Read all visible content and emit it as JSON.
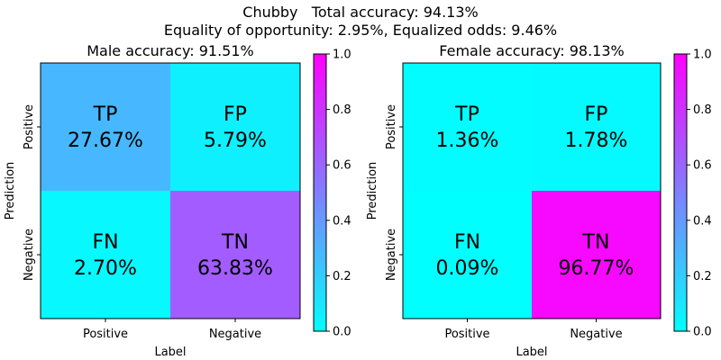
{
  "figure": {
    "title_line1": "Chubby   Total accuracy: 94.13%",
    "title_line2": "Equality of opportunity: 2.95%, Equalized odds: 9.46%"
  },
  "chart_data": [
    {
      "type": "heatmap",
      "title": "Male accuracy: 91.51%",
      "xlabel": "Label",
      "ylabel": "Prediction",
      "x_tick_labels": [
        "Positive",
        "Negative"
      ],
      "y_tick_labels": [
        "Positive",
        "Negative"
      ],
      "cells": [
        {
          "row": 0,
          "col": 0,
          "name": "TP",
          "label": "27.67%",
          "value": 0.2767
        },
        {
          "row": 0,
          "col": 1,
          "name": "FP",
          "label": "5.79%",
          "value": 0.0579
        },
        {
          "row": 1,
          "col": 0,
          "name": "FN",
          "label": "2.70%",
          "value": 0.027
        },
        {
          "row": 1,
          "col": 1,
          "name": "TN",
          "label": "63.83%",
          "value": 0.6383
        }
      ],
      "colorbar": {
        "colormap": "cool",
        "range": [
          0,
          1
        ],
        "ticks": [
          "0.0",
          "0.2",
          "0.4",
          "0.6",
          "0.8",
          "1.0"
        ]
      }
    },
    {
      "type": "heatmap",
      "title": "Female accuracy: 98.13%",
      "xlabel": "Label",
      "ylabel": "Prediction",
      "x_tick_labels": [
        "Positive",
        "Negative"
      ],
      "y_tick_labels": [
        "Positive",
        "Negative"
      ],
      "cells": [
        {
          "row": 0,
          "col": 0,
          "name": "TP",
          "label": "1.36%",
          "value": 0.0136
        },
        {
          "row": 0,
          "col": 1,
          "name": "FP",
          "label": "1.78%",
          "value": 0.0178
        },
        {
          "row": 1,
          "col": 0,
          "name": "FN",
          "label": "0.09%",
          "value": 0.0009
        },
        {
          "row": 1,
          "col": 1,
          "name": "TN",
          "label": "96.77%",
          "value": 0.9677
        }
      ],
      "colorbar": {
        "colormap": "cool",
        "range": [
          0,
          1
        ],
        "ticks": [
          "0.0",
          "0.2",
          "0.4",
          "0.6",
          "0.8",
          "1.0"
        ]
      }
    }
  ]
}
